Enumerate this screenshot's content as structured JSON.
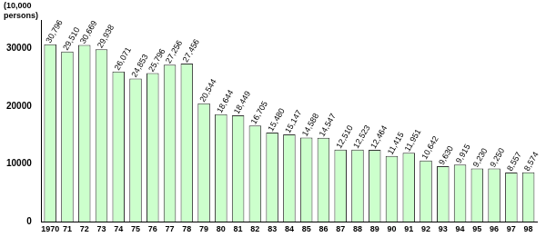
{
  "chart_data": {
    "type": "bar",
    "y_label": "(10,000 persons)",
    "categories": [
      "1970",
      "71",
      "72",
      "73",
      "74",
      "75",
      "76",
      "77",
      "78",
      "79",
      "80",
      "81",
      "82",
      "83",
      "84",
      "85",
      "86",
      "87",
      "88",
      "89",
      "90",
      "91",
      "92",
      "93",
      "94",
      "95",
      "96",
      "97",
      "98"
    ],
    "values": [
      30796,
      29510,
      30669,
      29938,
      26071,
      24853,
      25796,
      27256,
      27456,
      20544,
      18644,
      18449,
      16705,
      15480,
      15147,
      14588,
      14547,
      12510,
      12523,
      12464,
      11415,
      11951,
      10642,
      9630,
      9915,
      9230,
      9250,
      8557,
      8574
    ],
    "value_labels": [
      "30,796",
      "29,510",
      "30,669",
      "29,938",
      "26,071",
      "24,853",
      "25,796",
      "27,256",
      "27,456",
      "20,544",
      "18,644",
      "18,449",
      "16,705",
      "15,480",
      "15,147",
      "14,588",
      "14,547",
      "12,510",
      "12,523",
      "12,464",
      "11,415",
      "11,951",
      "10,642",
      "9,630",
      "9,915",
      "9,230",
      "9,250",
      "8,557",
      "8,574"
    ],
    "color": "#ccffcc",
    "ylim": [
      0,
      35000
    ],
    "yticks": [
      0,
      10000,
      20000,
      30000
    ],
    "grid": false,
    "data_labels": true
  }
}
